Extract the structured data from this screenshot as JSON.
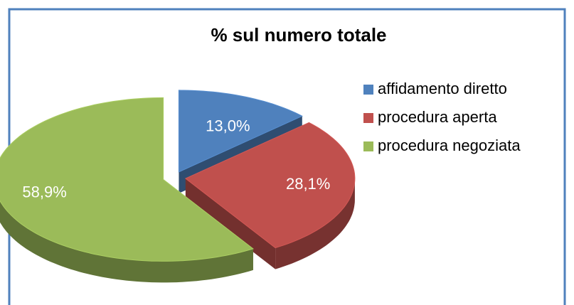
{
  "chart_data": {
    "type": "pie",
    "title": "% sul numero totale",
    "categories": [
      "affidamento diretto",
      "procedura aperta",
      "procedura negoziata"
    ],
    "values": [
      13.0,
      28.1,
      58.9
    ],
    "value_labels": [
      "13,0%",
      "28,1%",
      "58,9%"
    ],
    "colors": [
      "#4f81bd",
      "#c0504d",
      "#9bbb59"
    ],
    "legend": "right",
    "exploded": true,
    "three_d": true
  }
}
